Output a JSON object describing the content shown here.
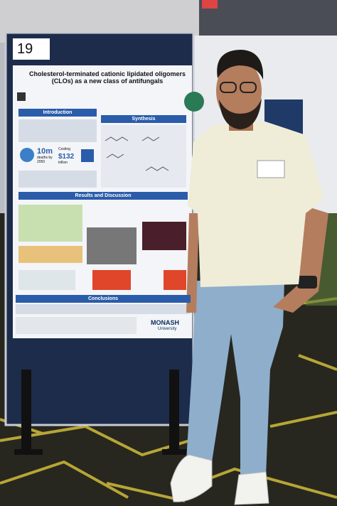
{
  "poster": {
    "number": "19",
    "title": "Cholesterol-terminated cationic lipidated oligomers (CLOs) as a new class of antifungals",
    "sections": [
      "Introduction",
      "Synthesis",
      "Results and Discussion",
      "Conclusions"
    ],
    "stat_deaths": {
      "figure": "10m",
      "text": "deaths by 2050"
    },
    "stat_cost": {
      "lead": "Costing",
      "figure": "$132",
      "text": "trillion"
    },
    "logo": {
      "name": "MONASH",
      "sub": "University"
    }
  }
}
